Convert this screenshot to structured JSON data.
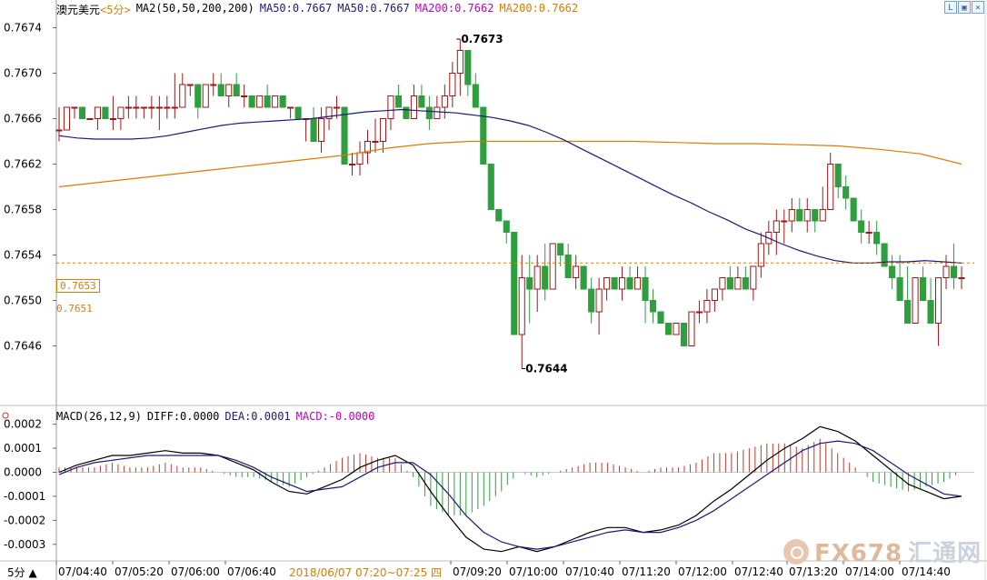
{
  "header": {
    "symbol": "澳元美元",
    "period": "<5分>",
    "ma_label": "MA2(50,50,200,200)",
    "ma50_a": "MA50:0.7667",
    "ma50_b": "MA50:0.7667",
    "ma200_a": "MA200:0.7662",
    "ma200_b": "MA200:0.7662",
    "color_ma50": "#1a1a7a",
    "color_ma200": "#e07b00",
    "color_ma200_text": "#c000c0",
    "color_up": "#a31515",
    "color_down": "#2e9e3e"
  },
  "macd_header": {
    "label": "MACD(26,12,9)",
    "diff": "DIFF:0.0000",
    "dea": "DEA:0.0001",
    "macd": "MACD:-0.0000"
  },
  "price_axis": {
    "ticks": [
      "0.7674",
      "0.7670",
      "0.7666",
      "0.7662",
      "0.7658",
      "0.7654",
      "0.7650",
      "0.7646"
    ],
    "current_price": "0.7653",
    "secondary_price": "0.7651"
  },
  "macd_axis": {
    "ticks": [
      "0.0002",
      "0.0001",
      "0.0000",
      "-0.0001",
      "-0.0002",
      "-0.0003"
    ]
  },
  "time_axis": {
    "labels": [
      "07/04:40",
      "07/05:20",
      "07/06:00",
      "07/06:40",
      "07/09:20",
      "07/10:00",
      "07/10:40",
      "07/11:20",
      "07/12:00",
      "07/12:40",
      "07/13:20",
      "07/14:00",
      "07/14:40"
    ],
    "range_label": "2018/06/07 07:20~07:25 四",
    "period_badge": "5分"
  },
  "annotations": {
    "high": "0.7673",
    "low": "0.7644"
  },
  "watermark": {
    "brand": "FX678",
    "cn": "汇通网"
  },
  "chart_data": {
    "type": "candlestick",
    "title": "澳元美元 <5分>",
    "ylim": [
      0.7643,
      0.7675
    ],
    "candles": [
      [
        0.7665,
        0.7667,
        0.7664,
        0.7665
      ],
      [
        0.7665,
        0.7667,
        0.7665,
        0.7667
      ],
      [
        0.7667,
        0.7667,
        0.7666,
        0.7667
      ],
      [
        0.7667,
        0.7667,
        0.7666,
        0.7666
      ],
      [
        0.7666,
        0.7666,
        0.7666,
        0.7666
      ],
      [
        0.7666,
        0.7667,
        0.7665,
        0.7667
      ],
      [
        0.7667,
        0.7667,
        0.7666,
        0.7666
      ],
      [
        0.7666,
        0.7668,
        0.7665,
        0.7666
      ],
      [
        0.7666,
        0.7667,
        0.7665,
        0.7667
      ],
      [
        0.7667,
        0.7668,
        0.7666,
        0.7667
      ],
      [
        0.7667,
        0.7668,
        0.7666,
        0.7667
      ],
      [
        0.7667,
        0.7667,
        0.7666,
        0.7667
      ],
      [
        0.7667,
        0.7668,
        0.7666,
        0.7667
      ],
      [
        0.7667,
        0.7668,
        0.7665,
        0.7667
      ],
      [
        0.7667,
        0.7668,
        0.7666,
        0.7667
      ],
      [
        0.7667,
        0.767,
        0.7666,
        0.7667
      ],
      [
        0.7667,
        0.767,
        0.7667,
        0.7669
      ],
      [
        0.7669,
        0.7669,
        0.7668,
        0.7669
      ],
      [
        0.7669,
        0.7669,
        0.7666,
        0.7667
      ],
      [
        0.7667,
        0.7669,
        0.7667,
        0.7669
      ],
      [
        0.7669,
        0.767,
        0.7668,
        0.7669
      ],
      [
        0.7669,
        0.767,
        0.7668,
        0.7668
      ],
      [
        0.7668,
        0.7669,
        0.7667,
        0.7669
      ],
      [
        0.7669,
        0.767,
        0.7668,
        0.7668
      ],
      [
        0.7668,
        0.7669,
        0.7667,
        0.7668
      ],
      [
        0.7668,
        0.7668,
        0.7667,
        0.7667
      ],
      [
        0.7667,
        0.7668,
        0.7667,
        0.7668
      ],
      [
        0.7668,
        0.7669,
        0.7667,
        0.7667
      ],
      [
        0.7667,
        0.7668,
        0.7667,
        0.7668
      ],
      [
        0.7668,
        0.7668,
        0.7667,
        0.7667
      ],
      [
        0.7667,
        0.7667,
        0.7666,
        0.7667
      ],
      [
        0.7667,
        0.7667,
        0.7666,
        0.7666
      ],
      [
        0.7666,
        0.7666,
        0.7664,
        0.7666
      ],
      [
        0.7666,
        0.7667,
        0.7664,
        0.7664
      ],
      [
        0.7664,
        0.7667,
        0.7663,
        0.7666
      ],
      [
        0.7666,
        0.7667,
        0.7665,
        0.7667
      ],
      [
        0.7667,
        0.7668,
        0.7666,
        0.7667
      ],
      [
        0.7667,
        0.7667,
        0.7662,
        0.7662
      ],
      [
        0.7662,
        0.7663,
        0.7661,
        0.7662
      ],
      [
        0.7662,
        0.7664,
        0.7661,
        0.7663
      ],
      [
        0.7663,
        0.7665,
        0.7662,
        0.7664
      ],
      [
        0.7664,
        0.7666,
        0.7663,
        0.7664
      ],
      [
        0.7664,
        0.7666,
        0.7663,
        0.7666
      ],
      [
        0.7666,
        0.7668,
        0.7665,
        0.7668
      ],
      [
        0.7668,
        0.7669,
        0.7667,
        0.7667
      ],
      [
        0.7667,
        0.7667,
        0.7666,
        0.7666
      ],
      [
        0.7666,
        0.7669,
        0.7666,
        0.7668
      ],
      [
        0.7668,
        0.7669,
        0.7667,
        0.7667
      ],
      [
        0.7667,
        0.7668,
        0.7665,
        0.7666
      ],
      [
        0.7666,
        0.7668,
        0.7666,
        0.7667
      ],
      [
        0.7667,
        0.7669,
        0.7666,
        0.7668
      ],
      [
        0.7668,
        0.7671,
        0.7667,
        0.767
      ],
      [
        0.767,
        0.7673,
        0.7668,
        0.7672
      ],
      [
        0.7672,
        0.7672,
        0.7668,
        0.7669
      ],
      [
        0.7669,
        0.767,
        0.7667,
        0.7667
      ],
      [
        0.7667,
        0.7667,
        0.7662,
        0.7662
      ],
      [
        0.7662,
        0.7662,
        0.7658,
        0.7658
      ],
      [
        0.7658,
        0.7658,
        0.7657,
        0.7657
      ],
      [
        0.7657,
        0.7657,
        0.7655,
        0.7656
      ],
      [
        0.7656,
        0.7656,
        0.7647,
        0.7647
      ],
      [
        0.7647,
        0.7654,
        0.7644,
        0.7652
      ],
      [
        0.7652,
        0.7654,
        0.7648,
        0.7651
      ],
      [
        0.7651,
        0.7654,
        0.7649,
        0.7653
      ],
      [
        0.7653,
        0.7655,
        0.765,
        0.7651
      ],
      [
        0.7651,
        0.7655,
        0.7651,
        0.7655
      ],
      [
        0.7655,
        0.7655,
        0.7653,
        0.7654
      ],
      [
        0.7654,
        0.7655,
        0.7652,
        0.7652
      ],
      [
        0.7652,
        0.7654,
        0.7651,
        0.7653
      ],
      [
        0.7653,
        0.7653,
        0.7651,
        0.7651
      ],
      [
        0.7651,
        0.7652,
        0.7648,
        0.7649
      ],
      [
        0.7649,
        0.7652,
        0.7647,
        0.7651
      ],
      [
        0.7651,
        0.7652,
        0.765,
        0.7652
      ],
      [
        0.7652,
        0.7652,
        0.7651,
        0.7651
      ],
      [
        0.7651,
        0.7653,
        0.765,
        0.7652
      ],
      [
        0.7652,
        0.7653,
        0.7651,
        0.7651
      ],
      [
        0.7651,
        0.7653,
        0.7651,
        0.7652
      ],
      [
        0.7652,
        0.7653,
        0.7648,
        0.765
      ],
      [
        0.765,
        0.7651,
        0.7648,
        0.7649
      ],
      [
        0.7649,
        0.7649,
        0.7648,
        0.7648
      ],
      [
        0.7648,
        0.7648,
        0.7647,
        0.7647
      ],
      [
        0.7647,
        0.7648,
        0.7647,
        0.7648
      ],
      [
        0.7648,
        0.7648,
        0.7646,
        0.7646
      ],
      [
        0.7646,
        0.7649,
        0.7646,
        0.7649
      ],
      [
        0.7649,
        0.765,
        0.7648,
        0.7649
      ],
      [
        0.7649,
        0.7651,
        0.7648,
        0.765
      ],
      [
        0.765,
        0.7651,
        0.7649,
        0.7651
      ],
      [
        0.7651,
        0.7652,
        0.765,
        0.7652
      ],
      [
        0.7652,
        0.7653,
        0.7651,
        0.7651
      ],
      [
        0.7651,
        0.7653,
        0.7651,
        0.7652
      ],
      [
        0.7652,
        0.7653,
        0.7651,
        0.7651
      ],
      [
        0.7651,
        0.7653,
        0.765,
        0.7653
      ],
      [
        0.7653,
        0.7656,
        0.7652,
        0.7655
      ],
      [
        0.7655,
        0.7657,
        0.7654,
        0.7656
      ],
      [
        0.7656,
        0.7658,
        0.7654,
        0.7657
      ],
      [
        0.7657,
        0.7658,
        0.7655,
        0.7657
      ],
      [
        0.7657,
        0.7659,
        0.7656,
        0.7658
      ],
      [
        0.7658,
        0.7659,
        0.7657,
        0.7657
      ],
      [
        0.7657,
        0.7659,
        0.7656,
        0.7658
      ],
      [
        0.7658,
        0.7658,
        0.7656,
        0.7657
      ],
      [
        0.7657,
        0.766,
        0.7657,
        0.7658
      ],
      [
        0.7658,
        0.7663,
        0.7658,
        0.7662
      ],
      [
        0.7662,
        0.7662,
        0.7659,
        0.766
      ],
      [
        0.766,
        0.7661,
        0.7658,
        0.7659
      ],
      [
        0.7659,
        0.7659,
        0.7657,
        0.7657
      ],
      [
        0.7657,
        0.7658,
        0.7655,
        0.7656
      ],
      [
        0.7656,
        0.7657,
        0.7655,
        0.7656
      ],
      [
        0.7656,
        0.7657,
        0.7654,
        0.7655
      ],
      [
        0.7655,
        0.7655,
        0.7653,
        0.7653
      ],
      [
        0.7653,
        0.7654,
        0.7651,
        0.7652
      ],
      [
        0.7652,
        0.7654,
        0.765,
        0.765
      ],
      [
        0.765,
        0.7653,
        0.7648,
        0.7648
      ],
      [
        0.7648,
        0.7652,
        0.7648,
        0.7652
      ],
      [
        0.7652,
        0.7653,
        0.765,
        0.765
      ],
      [
        0.765,
        0.7652,
        0.7648,
        0.7648
      ],
      [
        0.7648,
        0.7652,
        0.7646,
        0.7652
      ],
      [
        0.7652,
        0.7654,
        0.7651,
        0.7653
      ],
      [
        0.7653,
        0.7655,
        0.7651,
        0.7652
      ],
      [
        0.7652,
        0.7653,
        0.7651,
        0.7652
      ]
    ],
    "ma50": [
      0.76645,
      0.76643,
      0.76642,
      0.76642,
      0.76642,
      0.76643,
      0.76645,
      0.76648,
      0.76651,
      0.76654,
      0.76656,
      0.76657,
      0.76658,
      0.76659,
      0.7666,
      0.76662,
      0.76664,
      0.76666,
      0.76667,
      0.76668,
      0.76667,
      0.76666,
      0.76665,
      0.76663,
      0.76661,
      0.76658,
      0.76654,
      0.76648,
      0.76641,
      0.76633,
      0.76625,
      0.76617,
      0.76609,
      0.76601,
      0.76593,
      0.76586,
      0.76578,
      0.76571,
      0.76563,
      0.76557,
      0.7655,
      0.76544,
      0.76539,
      0.76535,
      0.76533,
      0.76533,
      0.76534,
      0.76534,
      0.76535,
      0.76534,
      0.76533
    ],
    "ma200": [
      0.766,
      0.76604,
      0.76608,
      0.76612,
      0.76616,
      0.7662,
      0.76624,
      0.76628,
      0.76634,
      0.76638,
      0.7664,
      0.7664,
      0.7664,
      0.7664,
      0.7664,
      0.76639,
      0.76638,
      0.76638,
      0.76637,
      0.76636,
      0.76633,
      0.76629,
      0.7662
    ],
    "macd": {
      "ylim": [
        -0.00035,
        0.00021
      ],
      "diff": [
        0.0,
        3e-05,
        5e-05,
        7e-05,
        7e-05,
        8e-05,
        9e-05,
        8e-05,
        8e-05,
        7e-05,
        4e-05,
        1e-05,
        -4e-05,
        -8e-05,
        -9e-05,
        -6e-05,
        -3e-05,
        2e-05,
        5e-05,
        7e-05,
        3e-05,
        -8e-05,
        -0.00018,
        -0.00027,
        -0.00032,
        -0.00033,
        -0.00031,
        -0.00033,
        -0.00031,
        -0.00028,
        -0.00025,
        -0.00023,
        -0.00023,
        -0.00025,
        -0.00024,
        -0.00022,
        -0.00018,
        -0.00012,
        -7e-05,
        -1e-05,
        5e-05,
        0.0001,
        0.00014,
        0.00019,
        0.00017,
        0.00013,
        7e-05,
        1e-05,
        -5e-05,
        -8e-05,
        -0.00011,
        -0.0001
      ],
      "dea": [
        -1e-05,
        2e-05,
        4e-05,
        5e-05,
        6e-05,
        7e-05,
        7e-05,
        7e-05,
        7e-05,
        7e-05,
        5e-05,
        2e-05,
        -2e-05,
        -5e-05,
        -8e-05,
        -7e-05,
        -6e-05,
        -2e-05,
        2e-05,
        4e-05,
        4e-05,
        -1e-05,
        -9e-05,
        -0.00018,
        -0.00025,
        -0.00029,
        -0.00031,
        -0.00032,
        -0.00031,
        -0.00029,
        -0.00027,
        -0.00025,
        -0.00024,
        -0.00025,
        -0.00025,
        -0.00023,
        -0.0002,
        -0.00016,
        -0.00011,
        -6e-05,
        -1e-05,
        4e-05,
        9e-05,
        0.00012,
        0.00013,
        0.00012,
        9e-05,
        4e-05,
        -1e-05,
        -5e-05,
        -9e-05,
        -0.0001
      ]
    }
  }
}
